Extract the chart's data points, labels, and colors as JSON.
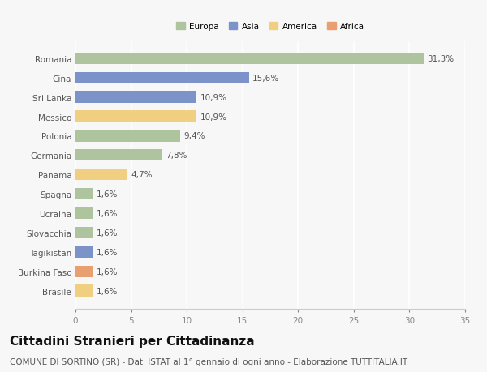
{
  "countries": [
    "Romania",
    "Cina",
    "Sri Lanka",
    "Messico",
    "Polonia",
    "Germania",
    "Panama",
    "Spagna",
    "Ucraina",
    "Slovacchia",
    "Tagikistan",
    "Burkina Faso",
    "Brasile"
  ],
  "values": [
    31.3,
    15.6,
    10.9,
    10.9,
    9.4,
    7.8,
    4.7,
    1.6,
    1.6,
    1.6,
    1.6,
    1.6,
    1.6
  ],
  "labels": [
    "31,3%",
    "15,6%",
    "10,9%",
    "10,9%",
    "9,4%",
    "7,8%",
    "4,7%",
    "1,6%",
    "1,6%",
    "1,6%",
    "1,6%",
    "1,6%",
    "1,6%"
  ],
  "continents": [
    "Europa",
    "Asia",
    "Asia",
    "America",
    "Europa",
    "Europa",
    "America",
    "Europa",
    "Europa",
    "Europa",
    "Asia",
    "Africa",
    "America"
  ],
  "continent_colors": {
    "Europa": "#aec49e",
    "Asia": "#7b93c9",
    "America": "#f0d080",
    "Africa": "#e8a070"
  },
  "legend_order": [
    "Europa",
    "Asia",
    "America",
    "Africa"
  ],
  "legend_colors": [
    "#aec49e",
    "#7b93c9",
    "#f0d080",
    "#e8a070"
  ],
  "xlim": [
    0,
    35
  ],
  "xticks": [
    0,
    5,
    10,
    15,
    20,
    25,
    30,
    35
  ],
  "bg_color": "#f7f7f7",
  "plot_bg_color": "#f7f7f7",
  "grid_color": "#ffffff",
  "title": "Cittadini Stranieri per Cittadinanza",
  "subtitle": "COMUNE DI SORTINO (SR) - Dati ISTAT al 1° gennaio di ogni anno - Elaborazione TUTTITALIA.IT",
  "label_fontsize": 7.5,
  "title_fontsize": 11,
  "subtitle_fontsize": 7.5,
  "bar_height": 0.6
}
